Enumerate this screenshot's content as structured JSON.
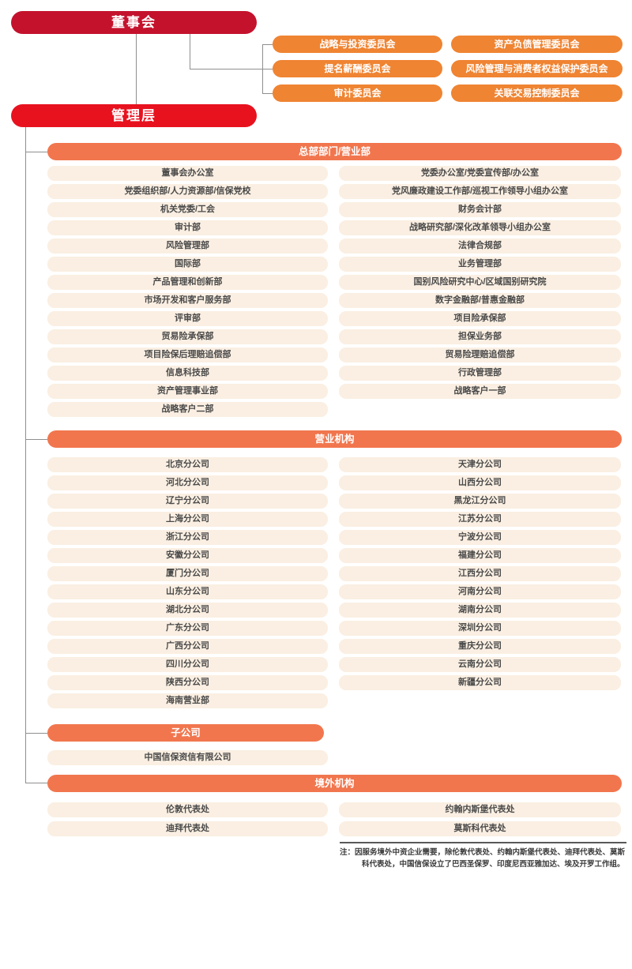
{
  "board": {
    "label": "董事会"
  },
  "management": {
    "label": "管理层"
  },
  "committees": {
    "left": [
      "战略与投资委员会",
      "提名薪酬委员会",
      "审计委员会"
    ],
    "right": [
      "资产负债管理委员会",
      "风险管理与消费者权益保护委员会",
      "关联交易控制委员会"
    ]
  },
  "sections": [
    {
      "id": "hq",
      "title": "总部部门/营业部",
      "left": [
        "董事会办公室",
        "党委组织部/人力资源部/信保党校",
        "机关党委/工会",
        "审计部",
        "风险管理部",
        "国际部",
        "产品管理和创新部",
        "市场开发和客户服务部",
        "评审部",
        "贸易险承保部",
        "项目险保后理赔追偿部",
        "信息科技部",
        "资产管理事业部",
        "战略客户二部"
      ],
      "right": [
        "党委办公室/党委宣传部/办公室",
        "党风廉政建设工作部/巡视工作领导小组办公室",
        "财务会计部",
        "战略研究部/深化改革领导小组办公室",
        "法律合规部",
        "业务管理部",
        "国别风险研究中心/区域国别研究院",
        "数字金融部/普惠金融部",
        "项目险承保部",
        "担保业务部",
        "贸易险理赔追偿部",
        "行政管理部",
        "战略客户一部"
      ]
    },
    {
      "id": "branches",
      "title": "营业机构",
      "left": [
        "北京分公司",
        "河北分公司",
        "辽宁分公司",
        "上海分公司",
        "浙江分公司",
        "安徽分公司",
        "厦门分公司",
        "山东分公司",
        "湖北分公司",
        "广东分公司",
        "广西分公司",
        "四川分公司",
        "陕西分公司",
        "海南营业部"
      ],
      "right": [
        "天津分公司",
        "山西分公司",
        "黑龙江分公司",
        "江苏分公司",
        "宁波分公司",
        "福建分公司",
        "江西分公司",
        "河南分公司",
        "湖南分公司",
        "深圳分公司",
        "重庆分公司",
        "云南分公司",
        "新疆分公司"
      ]
    },
    {
      "id": "subsidiaries",
      "title": "子公司",
      "left": [
        "中国信保资信有限公司"
      ],
      "right": []
    },
    {
      "id": "overseas",
      "title": "境外机构",
      "left": [
        "伦敦代表处",
        "迪拜代表处"
      ],
      "right": [
        "约翰内斯堡代表处",
        "莫斯科代表处"
      ]
    }
  ],
  "note": {
    "prefix": "注：",
    "text": "因服务境外中资企业需要，除伦敦代表处、约翰内斯堡代表处、迪拜代表处、莫斯科代表处，中国信保设立了巴西圣保罗、印度尼西亚雅加达、埃及开罗工作组。"
  },
  "colors": {
    "board_red": "#c4122d",
    "management_red": "#e8121f",
    "committee_orange": "#ef8432",
    "section_coral": "#f1764e",
    "item_cream": "#faefe2",
    "item_text": "#4a4a4a",
    "connector_gray": "#8f8f8f"
  }
}
